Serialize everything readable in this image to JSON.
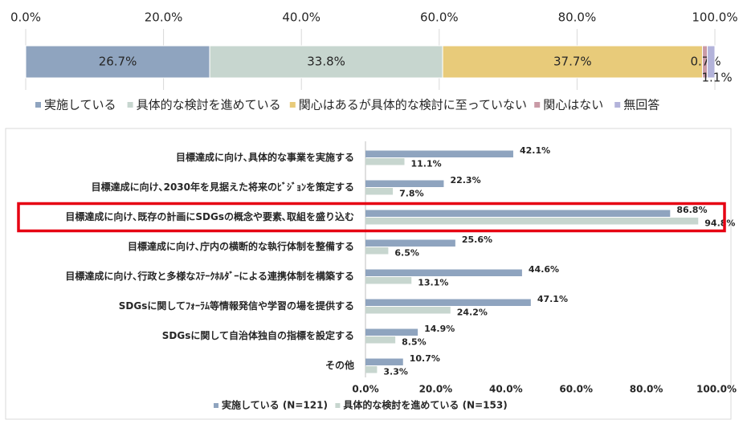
{
  "chart_data": [
    {
      "type": "bar",
      "orientation": "horizontal",
      "stacked": true,
      "xlim": [
        0,
        100
      ],
      "x_ticks": [
        "0.0%",
        "20.0%",
        "40.0%",
        "60.0%",
        "80.0%",
        "100.0%"
      ],
      "legend_position": "bottom",
      "segments": [
        {
          "name": "実施している",
          "value": 26.7,
          "label": "26.7%",
          "color": "#8fa4bf"
        },
        {
          "name": "具体的な検討を進めている",
          "value": 33.8,
          "label": "33.8%",
          "color": "#c7d6cf"
        },
        {
          "name": "関心はあるが具体的な検討に至っていない",
          "value": 37.7,
          "label": "37.7%",
          "color": "#e8cb7a"
        },
        {
          "name": "関心はない",
          "value": 0.7,
          "label": "0.7%",
          "color": "#c99aa6"
        },
        {
          "name": "無回答",
          "value": 1.1,
          "label": "1.1%",
          "color": "#b3b3da"
        }
      ]
    },
    {
      "type": "bar",
      "orientation": "horizontal",
      "xlim": [
        0,
        100
      ],
      "x_ticks": [
        "0.0%",
        "20.0%",
        "40.0%",
        "60.0%",
        "80.0%",
        "100.0%"
      ],
      "legend_position": "bottom",
      "categories": [
        "目標達成に向け､具体的な事業を実施する",
        "目標達成に向け､2030年を見据えた将来のﾋﾞｼﾞｮﾝを策定する",
        "目標達成に向け､既存の計画にSDGsの概念や要素､取組を盛り込む",
        "目標達成に向け､庁内の横断的な執行体制を整備する",
        "目標達成に向け､行政と多様なｽﾃｰｸﾎﾙﾀﾞｰによる連携体制を構築する",
        "SDGsに関してﾌｫｰﾗﾑ等情報発信や学習の場を提供する",
        "SDGsに関して自治体独自の指標を設定する",
        "その他"
      ],
      "highlighted_category_index": 2,
      "highlight_color": "#e60012",
      "series": [
        {
          "name": "実施している (N=121)",
          "color": "#8fa4bf",
          "values": [
            42.1,
            22.3,
            86.8,
            25.6,
            44.6,
            47.1,
            14.9,
            10.7
          ],
          "labels": [
            "42.1%",
            "22.3%",
            "86.8%",
            "25.6%",
            "44.6%",
            "47.1%",
            "14.9%",
            "10.7%"
          ]
        },
        {
          "name": "具体的な検討を進めている (N=153)",
          "color": "#c7d6cf",
          "values": [
            11.1,
            7.8,
            94.8,
            6.5,
            13.1,
            24.2,
            8.5,
            3.3
          ],
          "labels": [
            "11.1%",
            "7.8%",
            "94.8%",
            "6.5%",
            "13.1%",
            "24.2%",
            "8.5%",
            "3.3%"
          ]
        }
      ]
    }
  ]
}
